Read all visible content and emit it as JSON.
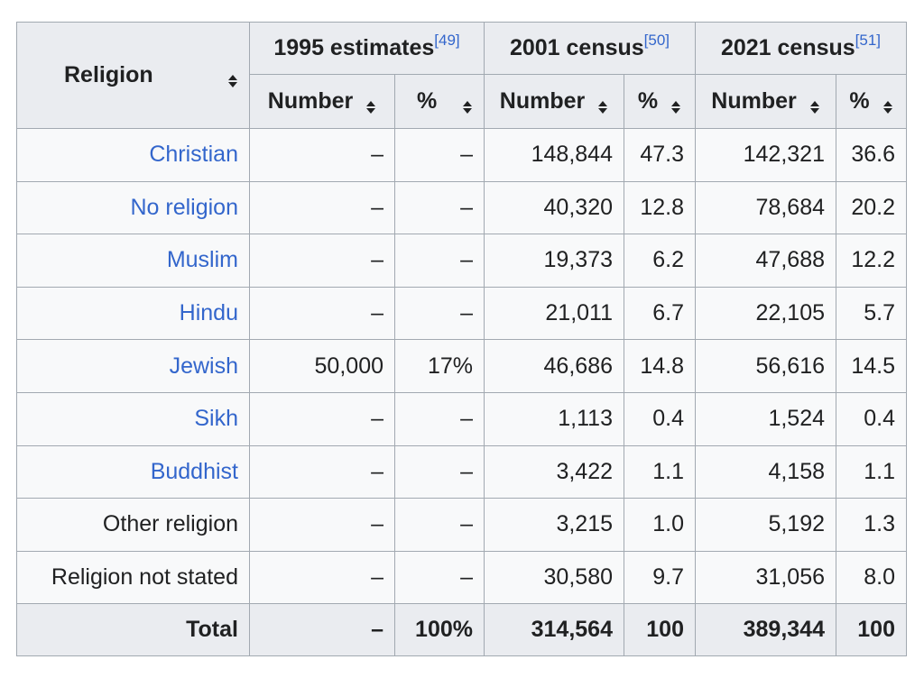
{
  "header": {
    "religion_label": "Religion",
    "groups": [
      {
        "label": "1995 estimates",
        "ref": "[49]"
      },
      {
        "label": "2001 census",
        "ref": "[50]"
      },
      {
        "label": "2021 census",
        "ref": "[51]"
      }
    ],
    "sub": {
      "number_label": "Number",
      "percent_label": "%"
    }
  },
  "rows": [
    {
      "name": "Christian",
      "is_link": true,
      "n1995": "–",
      "p1995": "–",
      "n2001": "148,844",
      "p2001": "47.3",
      "n2021": "142,321",
      "p2021": "36.6"
    },
    {
      "name": "No religion",
      "is_link": true,
      "n1995": "–",
      "p1995": "–",
      "n2001": "40,320",
      "p2001": "12.8",
      "n2021": "78,684",
      "p2021": "20.2"
    },
    {
      "name": "Muslim",
      "is_link": true,
      "n1995": "–",
      "p1995": "–",
      "n2001": "19,373",
      "p2001": "6.2",
      "n2021": "47,688",
      "p2021": "12.2"
    },
    {
      "name": "Hindu",
      "is_link": true,
      "n1995": "–",
      "p1995": "–",
      "n2001": "21,011",
      "p2001": "6.7",
      "n2021": "22,105",
      "p2021": "5.7"
    },
    {
      "name": "Jewish",
      "is_link": true,
      "n1995": "50,000",
      "p1995": "17%",
      "n2001": "46,686",
      "p2001": "14.8",
      "n2021": "56,616",
      "p2021": "14.5"
    },
    {
      "name": "Sikh",
      "is_link": true,
      "n1995": "–",
      "p1995": "–",
      "n2001": "1,113",
      "p2001": "0.4",
      "n2021": "1,524",
      "p2021": "0.4"
    },
    {
      "name": "Buddhist",
      "is_link": true,
      "n1995": "–",
      "p1995": "–",
      "n2001": "3,422",
      "p2001": "1.1",
      "n2021": "4,158",
      "p2021": "1.1"
    },
    {
      "name": "Other religion",
      "is_link": false,
      "n1995": "–",
      "p1995": "–",
      "n2001": "3,215",
      "p2001": "1.0",
      "n2021": "5,192",
      "p2021": "1.3"
    },
    {
      "name": "Religion not stated",
      "is_link": false,
      "n1995": "–",
      "p1995": "–",
      "n2001": "30,580",
      "p2001": "9.7",
      "n2021": "31,056",
      "p2021": "8.0"
    }
  ],
  "total": {
    "label": "Total",
    "n1995": "–",
    "p1995": "100%",
    "n2001": "314,564",
    "p2001": "100",
    "n2021": "389,344",
    "p2021": "100"
  },
  "colors": {
    "link": "#3366cc",
    "header_bg": "#eaecf0",
    "cell_bg": "#f8f9fa",
    "border": "#a2a9b1"
  }
}
